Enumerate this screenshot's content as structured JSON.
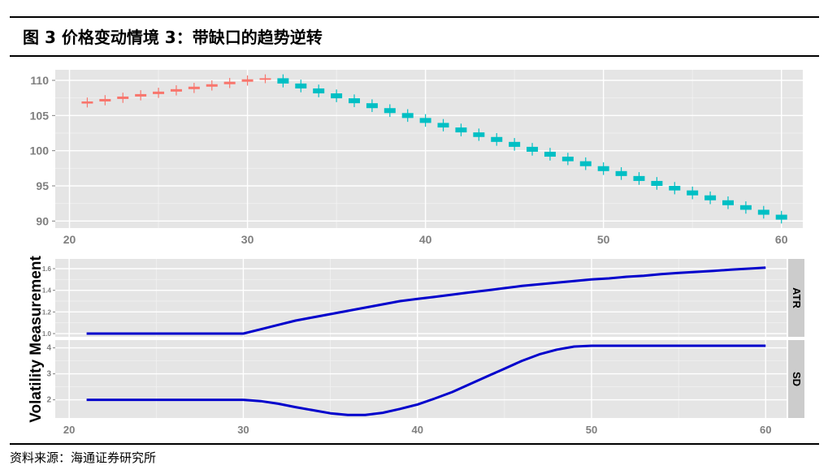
{
  "figure": {
    "title": "图 3   价格变动情境 3：带缺口的趋势逆转",
    "source": "资料来源：海通证券研究所"
  },
  "colors": {
    "up_candle": "#f8766d",
    "down_candle": "#00bfc4",
    "panel_bg": "#e5e5e5",
    "grid_major": "#ffffff",
    "grid_minor": "#f2f2f2",
    "line": "#0000cc",
    "strip_bg": "#cccccc"
  },
  "chart_data": [
    {
      "type": "candlestick",
      "x_ticks": [
        20,
        30,
        40,
        50,
        60
      ],
      "y_ticks": [
        90,
        95,
        100,
        105,
        110
      ],
      "xlim": [
        19.2,
        61.2
      ],
      "ylim": [
        89,
        111.5
      ],
      "grid": true,
      "series": [
        {
          "x": [
            21,
            22,
            23,
            24,
            25,
            26,
            27,
            28,
            29,
            30,
            31,
            32,
            33,
            34,
            35,
            36,
            37,
            38,
            39,
            40,
            41,
            42,
            43,
            44,
            45,
            46,
            47,
            48,
            49,
            50,
            51,
            52,
            53,
            54,
            55,
            56,
            57,
            58,
            59,
            60
          ],
          "close": [
            107.0,
            107.35,
            107.7,
            108.05,
            108.4,
            108.75,
            109.1,
            109.45,
            109.8,
            110.15,
            110.3,
            109.55,
            108.85,
            108.15,
            107.45,
            106.75,
            106.05,
            105.35,
            104.65,
            103.95,
            103.3,
            102.6,
            101.95,
            101.25,
            100.55,
            99.85,
            99.15,
            98.5,
            97.8,
            97.1,
            96.4,
            95.7,
            95.0,
            94.35,
            93.65,
            92.95,
            92.25,
            91.6,
            90.9,
            90.2
          ]
        }
      ]
    },
    {
      "type": "line",
      "facets": [
        {
          "label": "ATR",
          "y_ticks": [
            1.0,
            1.2,
            1.4,
            1.6
          ],
          "ylim": [
            0.97,
            1.69
          ],
          "x": [
            21,
            22,
            23,
            24,
            25,
            26,
            27,
            28,
            29,
            30,
            31,
            32,
            33,
            34,
            35,
            36,
            37,
            38,
            39,
            40,
            41,
            42,
            43,
            44,
            45,
            46,
            47,
            48,
            49,
            50,
            51,
            52,
            53,
            54,
            55,
            56,
            57,
            58,
            59,
            60
          ],
          "values": [
            1.0,
            1.0,
            1.0,
            1.0,
            1.0,
            1.0,
            1.0,
            1.0,
            1.0,
            1.0,
            1.04,
            1.08,
            1.12,
            1.15,
            1.18,
            1.21,
            1.24,
            1.27,
            1.3,
            1.32,
            1.34,
            1.36,
            1.38,
            1.4,
            1.42,
            1.44,
            1.455,
            1.47,
            1.485,
            1.5,
            1.51,
            1.525,
            1.535,
            1.55,
            1.56,
            1.57,
            1.58,
            1.59,
            1.6,
            1.61
          ]
        },
        {
          "label": "SD",
          "y_ticks": [
            2,
            3,
            4
          ],
          "ylim": [
            1.3,
            4.3
          ],
          "x": [
            21,
            22,
            23,
            24,
            25,
            26,
            27,
            28,
            29,
            30,
            31,
            32,
            33,
            34,
            35,
            36,
            37,
            38,
            39,
            40,
            41,
            42,
            43,
            44,
            45,
            46,
            47,
            48,
            49,
            50,
            51,
            52,
            53,
            54,
            55,
            56,
            57,
            58,
            59,
            60
          ],
          "values": [
            2.0,
            2.0,
            2.0,
            2.0,
            2.0,
            2.0,
            2.0,
            2.0,
            2.0,
            2.0,
            1.95,
            1.85,
            1.72,
            1.6,
            1.48,
            1.42,
            1.42,
            1.5,
            1.65,
            1.82,
            2.05,
            2.3,
            2.6,
            2.9,
            3.2,
            3.5,
            3.75,
            3.93,
            4.05,
            4.08,
            4.08,
            4.08,
            4.08,
            4.08,
            4.08,
            4.08,
            4.08,
            4.08,
            4.08,
            4.08
          ]
        }
      ],
      "x_ticks": [
        20,
        30,
        40,
        50,
        60
      ],
      "xlim": [
        19.2,
        61.2
      ],
      "ylabel": "Volatility Measurement",
      "grid": true
    }
  ]
}
